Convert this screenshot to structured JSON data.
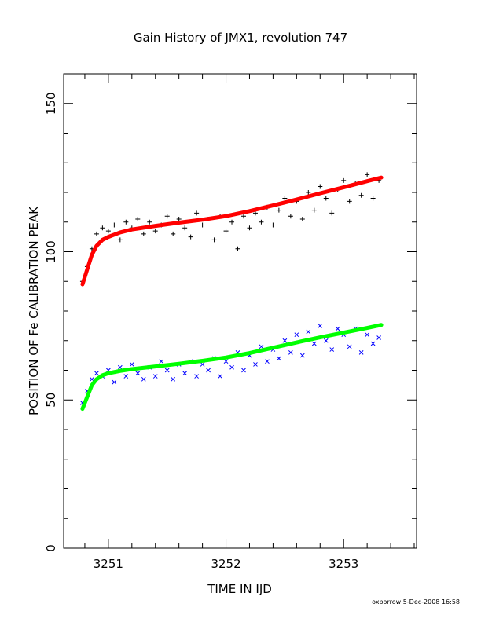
{
  "chart_data": {
    "type": "scatter",
    "title": "Gain History of JMX1, revolution 747",
    "xlabel": "TIME IN IJD",
    "ylabel": "POSITION OF Fe CALIBRATION PEAK",
    "xlim": [
      3250.62,
      3253.62
    ],
    "ylim": [
      0,
      160
    ],
    "xticks": [
      3251,
      3252,
      3253
    ],
    "xtick_labels": [
      "3251",
      "3252",
      "3253"
    ],
    "yticks": [
      0,
      50,
      100,
      150
    ],
    "ytick_labels": [
      "0",
      "50",
      "100",
      "150"
    ],
    "grid": false,
    "series": [
      {
        "marker": "plus",
        "color": "#000000",
        "x": [
          3250.78,
          3250.82,
          3250.86,
          3250.9,
          3250.95,
          3251.0,
          3251.05,
          3251.1,
          3251.15,
          3251.2,
          3251.25,
          3251.3,
          3251.35,
          3251.4,
          3251.45,
          3251.5,
          3251.55,
          3251.6,
          3251.65,
          3251.7,
          3251.75,
          3251.8,
          3251.85,
          3251.9,
          3251.95,
          3252.0,
          3252.05,
          3252.1,
          3252.15,
          3252.2,
          3252.25,
          3252.3,
          3252.35,
          3252.4,
          3252.45,
          3252.5,
          3252.55,
          3252.6,
          3252.65,
          3252.7,
          3252.75,
          3252.8,
          3252.85,
          3252.9,
          3252.95,
          3253.0,
          3253.05,
          3253.1,
          3253.15,
          3253.2,
          3253.25,
          3253.3
        ],
        "y": [
          90,
          95,
          101,
          106,
          108,
          107,
          109,
          104,
          110,
          108,
          111,
          106,
          110,
          107,
          109,
          112,
          106,
          111,
          108,
          105,
          113,
          109,
          111,
          104,
          112,
          107,
          110,
          101,
          112,
          108,
          113,
          110,
          115,
          109,
          114,
          118,
          112,
          117,
          111,
          120,
          114,
          122,
          118,
          113,
          121,
          124,
          117,
          123,
          119,
          126,
          118,
          124
        ]
      },
      {
        "marker": "fit",
        "color": "#ff0000",
        "x": [
          3250.78,
          3250.82,
          3250.86,
          3250.9,
          3250.95,
          3251.0,
          3251.1,
          3251.2,
          3251.4,
          3251.6,
          3251.8,
          3252.0,
          3252.2,
          3252.4,
          3252.6,
          3252.8,
          3253.0,
          3253.2,
          3253.32
        ],
        "y": [
          89,
          94,
          99,
          102,
          104,
          105,
          106.5,
          107.5,
          108.7,
          109.8,
          110.8,
          112,
          113.7,
          115.6,
          117.6,
          119.7,
          121.7,
          123.8,
          125
        ]
      },
      {
        "marker": "cross",
        "color": "#0000ff",
        "x": [
          3250.78,
          3250.82,
          3250.86,
          3250.9,
          3250.95,
          3251.0,
          3251.05,
          3251.1,
          3251.15,
          3251.2,
          3251.25,
          3251.3,
          3251.35,
          3251.4,
          3251.45,
          3251.5,
          3251.55,
          3251.6,
          3251.65,
          3251.7,
          3251.75,
          3251.8,
          3251.85,
          3251.9,
          3251.95,
          3252.0,
          3252.05,
          3252.1,
          3252.15,
          3252.2,
          3252.25,
          3252.3,
          3252.35,
          3252.4,
          3252.45,
          3252.5,
          3252.55,
          3252.6,
          3252.65,
          3252.7,
          3252.75,
          3252.8,
          3252.85,
          3252.9,
          3252.95,
          3253.0,
          3253.05,
          3253.1,
          3253.15,
          3253.2,
          3253.25,
          3253.3
        ],
        "y": [
          49,
          53,
          57,
          59,
          58,
          60,
          56,
          61,
          58,
          62,
          59,
          57,
          61,
          58,
          63,
          60,
          57,
          62,
          59,
          63,
          58,
          62,
          60,
          64,
          58,
          63,
          61,
          66,
          60,
          65,
          62,
          68,
          63,
          67,
          64,
          70,
          66,
          72,
          65,
          73,
          69,
          75,
          70,
          67,
          74,
          72,
          68,
          74,
          66,
          72,
          69,
          71
        ]
      },
      {
        "marker": "fit",
        "color": "#00ff00",
        "x": [
          3250.78,
          3250.82,
          3250.86,
          3250.9,
          3250.95,
          3251.0,
          3251.1,
          3251.2,
          3251.4,
          3251.6,
          3251.8,
          3252.0,
          3252.2,
          3252.4,
          3252.6,
          3252.8,
          3253.0,
          3253.2,
          3253.32
        ],
        "y": [
          47,
          51,
          55,
          57,
          58.3,
          59,
          59.8,
          60.4,
          61.3,
          62.2,
          63.2,
          64.3,
          65.8,
          67.6,
          69.4,
          71.1,
          72.7,
          74.3,
          75.3
        ]
      }
    ]
  },
  "footer": {
    "credit": "oxborrow  5-Dec-2008 16:58"
  }
}
